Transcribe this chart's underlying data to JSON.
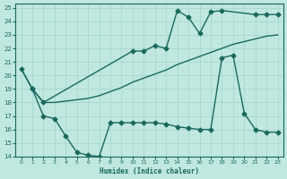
{
  "xlabel": "Humidex (Indice chaleur)",
  "bg_color": "#c0e8e0",
  "grid_color": "#a8d8d0",
  "line_color": "#1a6860",
  "xlim": [
    -0.5,
    23.5
  ],
  "ylim": [
    14,
    25.3
  ],
  "xticks": [
    0,
    1,
    2,
    3,
    4,
    5,
    6,
    7,
    8,
    9,
    10,
    11,
    12,
    13,
    14,
    15,
    16,
    17,
    18,
    19,
    20,
    21,
    22,
    23
  ],
  "yticks": [
    14,
    15,
    16,
    17,
    18,
    19,
    20,
    21,
    22,
    23,
    24,
    25
  ],
  "line1_x": [
    0,
    1,
    2,
    10,
    11,
    12,
    13,
    14,
    15,
    16,
    17,
    18,
    21,
    22,
    23
  ],
  "line1_y": [
    20.5,
    19.0,
    18.0,
    21.8,
    21.8,
    22.2,
    22.0,
    24.8,
    24.3,
    23.1,
    24.7,
    24.8,
    24.5,
    24.5,
    24.5
  ],
  "line2_x": [
    0,
    1,
    2,
    3,
    4,
    5,
    6,
    7,
    8,
    9,
    10,
    11,
    12,
    13,
    14,
    15,
    16,
    17,
    18,
    19,
    20,
    21,
    22,
    23
  ],
  "line2_y": [
    20.5,
    19.0,
    18.0,
    18.0,
    18.1,
    18.2,
    18.3,
    18.5,
    18.8,
    19.1,
    19.5,
    19.8,
    20.1,
    20.4,
    20.8,
    21.1,
    21.4,
    21.7,
    22.0,
    22.3,
    22.5,
    22.7,
    22.9,
    23.0
  ],
  "line3_x": [
    1,
    2,
    3,
    4,
    5,
    6,
    7,
    8,
    9,
    10,
    11,
    12,
    13,
    14,
    15,
    16,
    17,
    18,
    19,
    20,
    21,
    22,
    23
  ],
  "line3_y": [
    19.0,
    17.0,
    16.8,
    15.5,
    14.3,
    14.1,
    14.0,
    16.5,
    16.5,
    16.5,
    16.5,
    16.5,
    16.4,
    16.2,
    16.1,
    16.0,
    16.0,
    21.3,
    21.5,
    17.2,
    16.0,
    15.8,
    15.8
  ],
  "marker": "D",
  "markersize": 2.5,
  "linewidth": 1.0
}
